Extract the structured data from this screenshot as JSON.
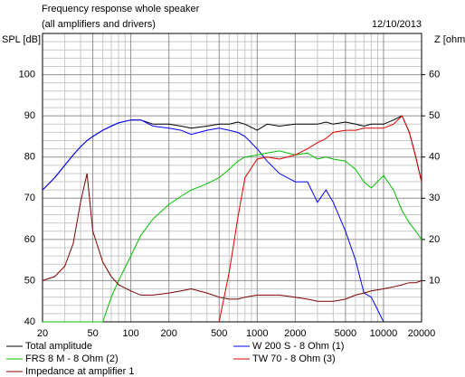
{
  "chart_data": {
    "type": "line",
    "title": "Frequency response whole speaker",
    "subtitle": "(all amplifiers and drivers)",
    "date": "12/10/2013",
    "y_label": "SPL [dB]",
    "y2_label": "Z [ohm]",
    "xscale": "log",
    "grid": true,
    "x": [
      20,
      25,
      30,
      35,
      40,
      45,
      50,
      60,
      70,
      80,
      100,
      120,
      150,
      200,
      250,
      300,
      400,
      500,
      600,
      700,
      800,
      1000,
      1200,
      1500,
      2000,
      2500,
      3000,
      3500,
      4000,
      5000,
      6000,
      7000,
      8000,
      10000,
      12000,
      14000,
      16000,
      18000,
      20000
    ],
    "xlim": [
      20,
      20000
    ],
    "xticks": [
      20,
      50,
      100,
      200,
      500,
      1000,
      2000,
      5000,
      10000,
      20000
    ],
    "x_minor_ticks": [
      30,
      40,
      60,
      70,
      80,
      90,
      300,
      400,
      600,
      700,
      800,
      900,
      3000,
      4000,
      6000,
      7000,
      8000,
      9000
    ],
    "ylim": [
      40,
      110
    ],
    "yticks": [
      40,
      50,
      60,
      70,
      80,
      90,
      100
    ],
    "y_minor_ticks": [
      42,
      44,
      46,
      48,
      52,
      54,
      56,
      58,
      62,
      64,
      66,
      68,
      72,
      74,
      76,
      78,
      82,
      84,
      86,
      88,
      92,
      94,
      96,
      98,
      102,
      104,
      106,
      108
    ],
    "y2lim": [
      0,
      70
    ],
    "y2ticks": [
      10,
      20,
      30,
      40,
      50,
      60
    ],
    "series": [
      {
        "name": "Total amplitude",
        "color": "#000000",
        "values": [
          72,
          75,
          78,
          80.5,
          82.5,
          84,
          85,
          86.5,
          87.5,
          88.3,
          89,
          89,
          88,
          88,
          87.5,
          87,
          87.5,
          88,
          88,
          88.5,
          88,
          86.5,
          88,
          87.5,
          88,
          88,
          88,
          88.5,
          88,
          88.5,
          88,
          87.5,
          88,
          88,
          89,
          90,
          86,
          80,
          74
        ]
      },
      {
        "name": "W 200 S - 8 Ohm (1)",
        "color": "#0000ff",
        "values": [
          72,
          75,
          78,
          80.5,
          82.5,
          84,
          85,
          86.5,
          87.5,
          88.3,
          89,
          89,
          87.5,
          87,
          86.5,
          85.5,
          86.5,
          87,
          86.5,
          86,
          85,
          82,
          79,
          76,
          74,
          74,
          69,
          72,
          69,
          62,
          55,
          47,
          46,
          40,
          null,
          null,
          null,
          null,
          null
        ]
      },
      {
        "name": "FRS 8 M - 8 Ohm (2)",
        "color": "#00c000",
        "values": [
          40,
          40,
          40,
          40,
          40,
          40,
          40,
          40,
          46,
          50,
          56,
          61,
          65,
          68.5,
          70.5,
          72,
          73.5,
          75,
          77,
          79,
          80,
          80.5,
          81,
          81.5,
          80.5,
          81,
          79.5,
          80,
          79.5,
          79,
          77,
          74,
          72.5,
          75.5,
          72,
          67,
          64,
          62,
          60
        ]
      },
      {
        "name": "TW 70 - 8 Ohm (3)",
        "color": "#e00000",
        "values": [
          null,
          null,
          null,
          null,
          null,
          null,
          null,
          null,
          null,
          null,
          null,
          null,
          null,
          null,
          null,
          null,
          null,
          40,
          52,
          65,
          75,
          79.5,
          80,
          79.5,
          80.5,
          82,
          83.5,
          84.5,
          86,
          86.5,
          86.5,
          87,
          87,
          87,
          88,
          90,
          86,
          80,
          74
        ]
      },
      {
        "name": "Impedance at amplifier 1",
        "color": "#800000",
        "axis": "y2",
        "values": [
          10,
          11,
          13.5,
          19,
          29,
          36,
          22,
          14.5,
          11,
          9,
          7.5,
          6.5,
          6.5,
          7,
          7.5,
          8,
          7,
          6,
          5.5,
          5.5,
          6,
          6.5,
          6.5,
          6.5,
          6,
          5.5,
          5,
          5,
          5,
          5.5,
          6.5,
          7,
          7.5,
          8,
          8.5,
          9,
          9.5,
          9.5,
          10
        ]
      }
    ]
  }
}
